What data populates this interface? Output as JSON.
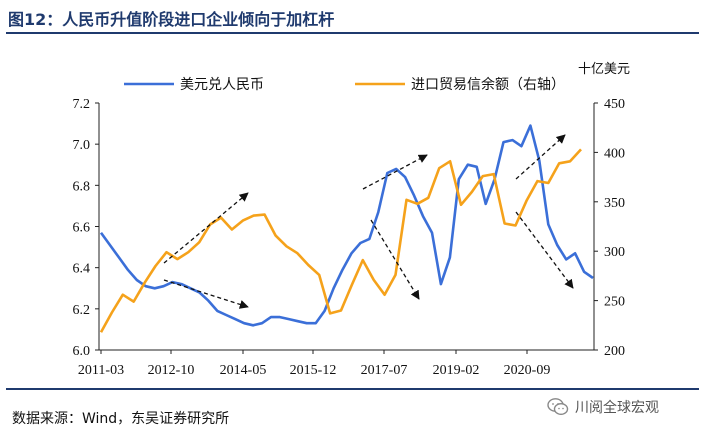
{
  "title": "图12：人民币升值阶段进口企业倾向于加杠杆",
  "source": "数据来源：Wind，东吴证券研究所",
  "watermark": "川阅全球宏观",
  "chart_data": {
    "type": "line",
    "y_right_label": "十亿美元",
    "ylim_left": [
      6.0,
      7.2
    ],
    "yticks_left": [
      "7.2",
      "7.0",
      "6.8",
      "6.6",
      "6.4",
      "6.2",
      "6.0"
    ],
    "ylim_right": [
      200,
      450
    ],
    "yticks_right": [
      "450",
      "400",
      "350",
      "300",
      "250",
      "200"
    ],
    "x_tick_labels": [
      "2011-03",
      "2012-10",
      "2014-05",
      "2015-12",
      "2017-07",
      "2019-02",
      "2020-09"
    ],
    "legend_position": "top",
    "series": [
      {
        "name": "美元兑人民币",
        "axis": "left",
        "color": "#3b6fd8",
        "values": [
          6.57,
          6.51,
          6.45,
          6.39,
          6.34,
          6.31,
          6.3,
          6.31,
          6.33,
          6.32,
          6.3,
          6.28,
          6.24,
          6.19,
          6.17,
          6.15,
          6.13,
          6.12,
          6.13,
          6.16,
          6.16,
          6.15,
          6.14,
          6.13,
          6.13,
          6.19,
          6.3,
          6.39,
          6.47,
          6.52,
          6.54,
          6.67,
          6.86,
          6.88,
          6.84,
          6.75,
          6.65,
          6.57,
          6.32,
          6.45,
          6.83,
          6.9,
          6.89,
          6.71,
          6.83,
          7.01,
          7.02,
          6.99,
          7.09,
          6.92,
          6.61,
          6.51,
          6.44,
          6.47,
          6.38,
          6.35
        ]
      },
      {
        "name": "进口贸易信余额（右轴）",
        "axis": "right",
        "color": "#f5a21b",
        "values": [
          218,
          238,
          256,
          249,
          268,
          285,
          299,
          292,
          299,
          309,
          327,
          334,
          322,
          331,
          336,
          337,
          316,
          305,
          298,
          286,
          276,
          237,
          240,
          266,
          291,
          271,
          256,
          276,
          352,
          348,
          354,
          384,
          391,
          347,
          360,
          376,
          378,
          328,
          326,
          351,
          371,
          369,
          389,
          391,
          403
        ]
      }
    ]
  }
}
